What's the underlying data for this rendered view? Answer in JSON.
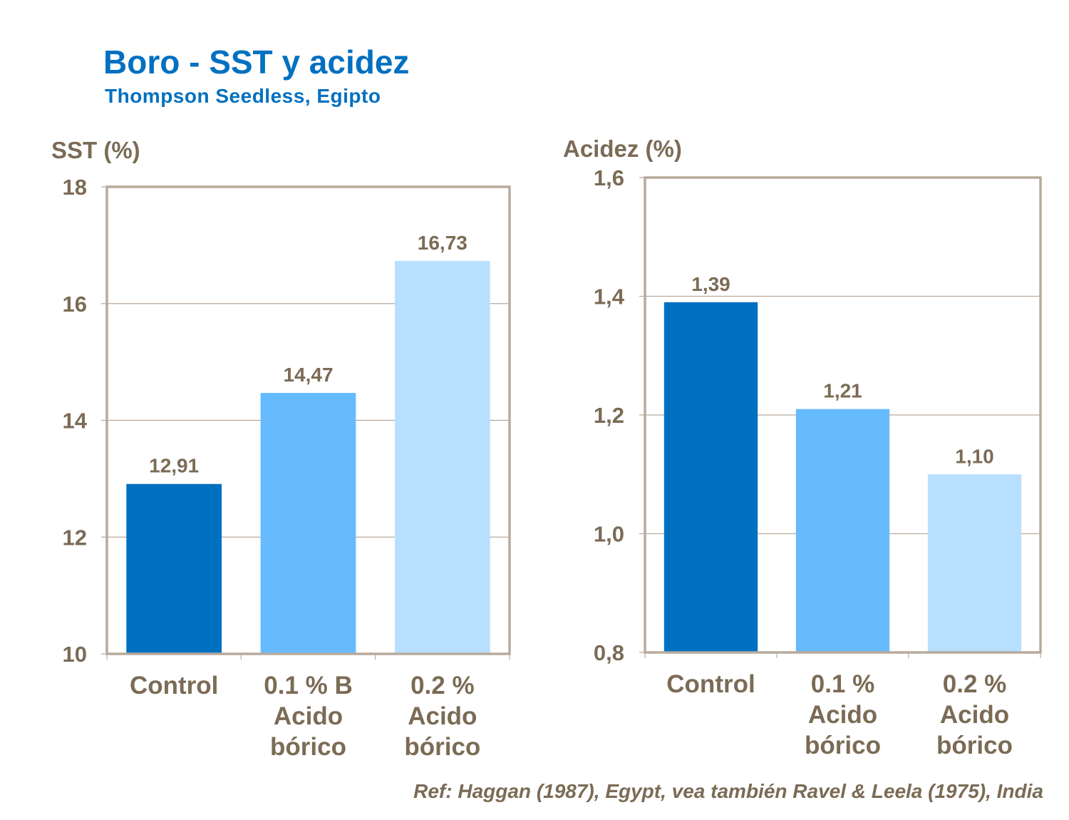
{
  "title": "Boro - SST y acidez",
  "subtitle": "Thompson Seedless, Egipto",
  "reference": "Ref: Haggan  (1987), Egypt, vea también Ravel & Leela (1975), India",
  "colors": {
    "text": "#7b6b55",
    "title": "#0070c0",
    "frame": "#b8aa9c",
    "bars": [
      "#0070c0",
      "#66bbff",
      "#b9dfff"
    ]
  },
  "chart_data": [
    {
      "type": "bar",
      "ylabel": "SST (%)",
      "categories": [
        [
          "Control"
        ],
        [
          "0.1 % B",
          "Acido",
          "bórico"
        ],
        [
          "0.2 %",
          "Acido",
          "bórico"
        ]
      ],
      "values": [
        12.91,
        14.47,
        16.73
      ],
      "data_labels": [
        "12,91",
        "14,47",
        "16,73"
      ],
      "ylim": [
        10,
        18
      ],
      "yticks": [
        10,
        12,
        14,
        16,
        18
      ],
      "ytick_labels": [
        "10",
        "12",
        "14",
        "16",
        "18"
      ],
      "grid": true
    },
    {
      "type": "bar",
      "ylabel": "Acidez (%)",
      "categories": [
        [
          "Control"
        ],
        [
          "0.1 %",
          "Acido",
          "bórico"
        ],
        [
          "0.2 %",
          "Acido",
          "bórico"
        ]
      ],
      "values": [
        1.39,
        1.21,
        1.1
      ],
      "data_labels": [
        "1,39",
        "1,21",
        "1,10"
      ],
      "ylim": [
        0.8,
        1.6
      ],
      "yticks": [
        0.8,
        1.0,
        1.2,
        1.4,
        1.6
      ],
      "ytick_labels": [
        "0,8",
        "1,0",
        "1,2",
        "1,4",
        "1,6"
      ],
      "grid": true
    }
  ]
}
